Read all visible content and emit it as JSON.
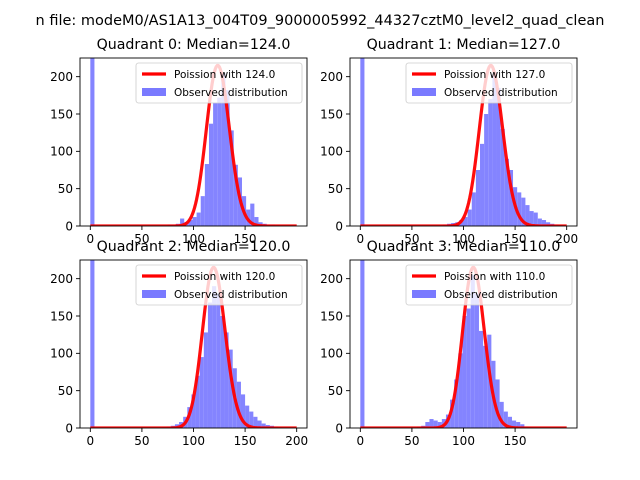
{
  "figure": {
    "suptitle": "n file: modeM0/AS1A13_004T09_9000005992_44327cztM0_level2_quad_clean"
  },
  "colors": {
    "poisson": "#ff0000",
    "hist": "#7a7aff",
    "axis": "#000000"
  },
  "chart_data": [
    {
      "type": "bar",
      "title": "Quadrant 0: Median=124.0",
      "median": 124.0,
      "xlim": [
        -10,
        210
      ],
      "ylim": [
        0,
        225
      ],
      "xticks": [
        0,
        50,
        100,
        150
      ],
      "yticks": [
        0,
        50,
        100,
        150,
        200
      ],
      "legend_position": "upper-right",
      "series": [
        {
          "name": "Poission with 124.0",
          "kind": "line"
        },
        {
          "name": "Observed distribution",
          "kind": "hist"
        }
      ],
      "bins": [
        {
          "x": 0,
          "y": 225
        },
        {
          "x": 75,
          "y": 2
        },
        {
          "x": 79,
          "y": 2
        },
        {
          "x": 83,
          "y": 3
        },
        {
          "x": 87,
          "y": 10
        },
        {
          "x": 91,
          "y": 5
        },
        {
          "x": 95,
          "y": 8
        },
        {
          "x": 99,
          "y": 12
        },
        {
          "x": 103,
          "y": 18
        },
        {
          "x": 107,
          "y": 40
        },
        {
          "x": 111,
          "y": 83
        },
        {
          "x": 115,
          "y": 137
        },
        {
          "x": 119,
          "y": 165
        },
        {
          "x": 123,
          "y": 172
        },
        {
          "x": 127,
          "y": 205
        },
        {
          "x": 131,
          "y": 182
        },
        {
          "x": 135,
          "y": 128
        },
        {
          "x": 139,
          "y": 82
        },
        {
          "x": 143,
          "y": 65
        },
        {
          "x": 147,
          "y": 40
        },
        {
          "x": 151,
          "y": 22
        },
        {
          "x": 155,
          "y": 30
        },
        {
          "x": 159,
          "y": 12
        },
        {
          "x": 163,
          "y": 5
        },
        {
          "x": 167,
          "y": 3
        },
        {
          "x": 171,
          "y": 2
        },
        {
          "x": 175,
          "y": 2
        },
        {
          "x": 179,
          "y": 1
        }
      ]
    },
    {
      "type": "bar",
      "title": "Quadrant 1: Median=127.0",
      "median": 127.0,
      "xlim": [
        -10,
        210
      ],
      "ylim": [
        0,
        225
      ],
      "xticks": [
        0,
        50,
        100,
        150,
        200
      ],
      "yticks": [
        0,
        50,
        100,
        150,
        200
      ],
      "legend_position": "upper-right",
      "series": [
        {
          "name": "Poission with 127.0",
          "kind": "line"
        },
        {
          "name": "Observed distribution",
          "kind": "hist"
        }
      ],
      "bins": [
        {
          "x": 0,
          "y": 225
        },
        {
          "x": 80,
          "y": 2
        },
        {
          "x": 84,
          "y": 3
        },
        {
          "x": 88,
          "y": 4
        },
        {
          "x": 92,
          "y": 5
        },
        {
          "x": 96,
          "y": 8
        },
        {
          "x": 100,
          "y": 12
        },
        {
          "x": 104,
          "y": 22
        },
        {
          "x": 108,
          "y": 45
        },
        {
          "x": 112,
          "y": 75
        },
        {
          "x": 116,
          "y": 110
        },
        {
          "x": 120,
          "y": 150
        },
        {
          "x": 124,
          "y": 170
        },
        {
          "x": 128,
          "y": 205
        },
        {
          "x": 132,
          "y": 185
        },
        {
          "x": 136,
          "y": 130
        },
        {
          "x": 140,
          "y": 90
        },
        {
          "x": 144,
          "y": 75
        },
        {
          "x": 148,
          "y": 52
        },
        {
          "x": 152,
          "y": 45
        },
        {
          "x": 156,
          "y": 38
        },
        {
          "x": 160,
          "y": 28
        },
        {
          "x": 164,
          "y": 20
        },
        {
          "x": 168,
          "y": 18
        },
        {
          "x": 172,
          "y": 10
        },
        {
          "x": 176,
          "y": 8
        },
        {
          "x": 180,
          "y": 5
        },
        {
          "x": 184,
          "y": 3
        },
        {
          "x": 188,
          "y": 2
        },
        {
          "x": 192,
          "y": 1
        }
      ]
    },
    {
      "type": "bar",
      "title": "Quadrant 2: Median=120.0",
      "median": 120.0,
      "xlim": [
        -10,
        210
      ],
      "ylim": [
        0,
        225
      ],
      "xticks": [
        0,
        50,
        100,
        150,
        200
      ],
      "yticks": [
        0,
        50,
        100,
        150,
        200
      ],
      "legend_position": "upper-right",
      "series": [
        {
          "name": "Poission with 120.0",
          "kind": "line"
        },
        {
          "name": "Observed distribution",
          "kind": "hist"
        }
      ],
      "bins": [
        {
          "x": 0,
          "y": 225
        },
        {
          "x": 70,
          "y": 1
        },
        {
          "x": 74,
          "y": 2
        },
        {
          "x": 78,
          "y": 3
        },
        {
          "x": 82,
          "y": 5
        },
        {
          "x": 86,
          "y": 8
        },
        {
          "x": 90,
          "y": 15
        },
        {
          "x": 94,
          "y": 28
        },
        {
          "x": 98,
          "y": 45
        },
        {
          "x": 102,
          "y": 70
        },
        {
          "x": 106,
          "y": 95
        },
        {
          "x": 110,
          "y": 128
        },
        {
          "x": 114,
          "y": 168
        },
        {
          "x": 118,
          "y": 190
        },
        {
          "x": 122,
          "y": 180
        },
        {
          "x": 126,
          "y": 150
        },
        {
          "x": 130,
          "y": 128
        },
        {
          "x": 134,
          "y": 105
        },
        {
          "x": 138,
          "y": 80
        },
        {
          "x": 142,
          "y": 62
        },
        {
          "x": 146,
          "y": 45
        },
        {
          "x": 150,
          "y": 30
        },
        {
          "x": 154,
          "y": 22
        },
        {
          "x": 158,
          "y": 15
        },
        {
          "x": 162,
          "y": 10
        },
        {
          "x": 166,
          "y": 6
        },
        {
          "x": 170,
          "y": 4
        },
        {
          "x": 174,
          "y": 3
        },
        {
          "x": 178,
          "y": 2
        },
        {
          "x": 182,
          "y": 1
        }
      ]
    },
    {
      "type": "bar",
      "title": "Quadrant 3: Median=110.0",
      "median": 110.0,
      "xlim": [
        -10,
        210
      ],
      "ylim": [
        0,
        225
      ],
      "xticks": [
        0,
        50,
        100,
        150
      ],
      "yticks": [
        0,
        50,
        100,
        150,
        200
      ],
      "legend_position": "upper-right",
      "series": [
        {
          "name": "Poission with 110.0",
          "kind": "line"
        },
        {
          "name": "Observed distribution",
          "kind": "hist"
        }
      ],
      "bins": [
        {
          "x": 0,
          "y": 225
        },
        {
          "x": 55,
          "y": 2
        },
        {
          "x": 59,
          "y": 3
        },
        {
          "x": 63,
          "y": 8
        },
        {
          "x": 67,
          "y": 12
        },
        {
          "x": 71,
          "y": 10
        },
        {
          "x": 75,
          "y": 8
        },
        {
          "x": 79,
          "y": 12
        },
        {
          "x": 83,
          "y": 18
        },
        {
          "x": 87,
          "y": 38
        },
        {
          "x": 91,
          "y": 65
        },
        {
          "x": 95,
          "y": 100
        },
        {
          "x": 99,
          "y": 150
        },
        {
          "x": 103,
          "y": 160
        },
        {
          "x": 107,
          "y": 205
        },
        {
          "x": 111,
          "y": 180
        },
        {
          "x": 115,
          "y": 130
        },
        {
          "x": 119,
          "y": 110
        },
        {
          "x": 123,
          "y": 125
        },
        {
          "x": 127,
          "y": 90
        },
        {
          "x": 131,
          "y": 65
        },
        {
          "x": 135,
          "y": 35
        },
        {
          "x": 139,
          "y": 22
        },
        {
          "x": 143,
          "y": 15
        },
        {
          "x": 147,
          "y": 10
        },
        {
          "x": 151,
          "y": 8
        },
        {
          "x": 155,
          "y": 5
        },
        {
          "x": 159,
          "y": 2
        },
        {
          "x": 163,
          "y": 1
        }
      ]
    }
  ]
}
